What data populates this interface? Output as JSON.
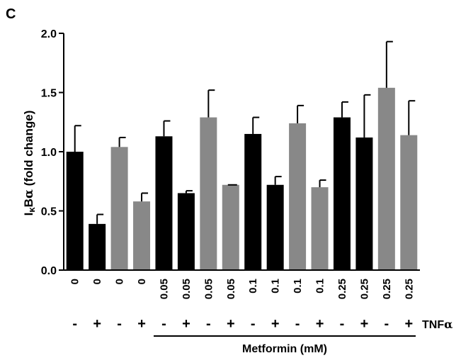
{
  "panel_label": "C",
  "chart_data": {
    "type": "bar",
    "ylabel_main": "I",
    "ylabel_kappa": "κ",
    "ylabel_rest": "B",
    "ylabel_alpha": "α",
    "ylabel_tail": " (fold change)",
    "ylim": [
      0,
      2.0
    ],
    "yticks": [
      "0.0",
      "0.5",
      "1.0",
      "1.5",
      "2.0"
    ],
    "ytick_values": [
      0,
      0.5,
      1.0,
      1.5,
      2.0
    ],
    "categories": [
      "0",
      "0",
      "0",
      "0",
      "0.05",
      "0.05",
      "0.05",
      "0.05",
      "0.1",
      "0.1",
      "0.1",
      "0.1",
      "0.25",
      "0.25",
      "0.25",
      "0.25"
    ],
    "values": [
      1.0,
      0.39,
      1.04,
      0.58,
      1.13,
      0.65,
      1.29,
      0.72,
      1.15,
      0.72,
      1.24,
      0.7,
      1.29,
      1.12,
      1.54,
      1.14
    ],
    "errors": [
      0.22,
      0.08,
      0.08,
      0.07,
      0.13,
      0.02,
      0.23,
      0.0,
      0.14,
      0.07,
      0.15,
      0.06,
      0.13,
      0.36,
      0.39,
      0.29
    ],
    "bar_colors": [
      "#000000",
      "#000000",
      "#888888",
      "#888888",
      "#000000",
      "#000000",
      "#888888",
      "#888888",
      "#000000",
      "#000000",
      "#888888",
      "#888888",
      "#000000",
      "#000000",
      "#888888",
      "#888888"
    ],
    "tnf_signs": [
      "-",
      "+",
      "-",
      "+",
      "-",
      "+",
      "-",
      "+",
      "-",
      "+",
      "-",
      "+",
      "-",
      "+",
      "-",
      "+"
    ],
    "tnf_label": "TNF",
    "tnf_alpha": "α",
    "metformin_label": "Metformin (mM)",
    "grid": false
  }
}
